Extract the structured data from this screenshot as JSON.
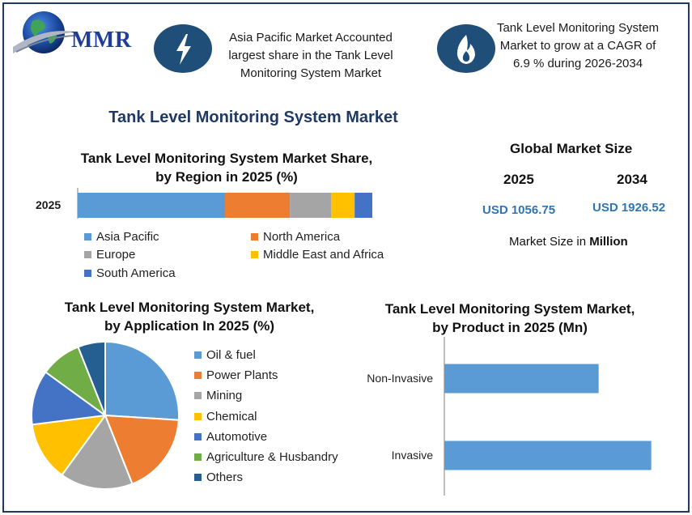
{
  "header": {
    "logo_text": "MMR",
    "highlight_left": "Asia Pacific Market Accounted largest share in the Tank Level Monitoring System Market",
    "highlight_right": "Tank Level Monitoring System Market to grow at a CAGR of 6.9 % during 2026-2034",
    "highlight_left_icon": "lightning-bolt-icon",
    "highlight_right_icon": "flame-icon",
    "icon_color": "#1f4e79"
  },
  "main_title": "Tank Level Monitoring System Market",
  "global_market": {
    "title": "Global Market Size",
    "year_start": "2025",
    "year_end": "2034",
    "value_start": "USD 1056.75",
    "value_end": "USD 1926.52",
    "note_prefix": "Market Size in ",
    "note_bold": "Million"
  },
  "chart_data": [
    {
      "type": "bar",
      "orientation": "horizontal-stacked",
      "title_line1": "Tank Level Monitoring System Market Share,",
      "title_line2": "by Region in 2025 (%)",
      "categories": [
        "2025"
      ],
      "series": [
        {
          "name": "Asia Pacific",
          "values": [
            50
          ],
          "color": "#5b9bd5"
        },
        {
          "name": "North America",
          "values": [
            22
          ],
          "color": "#ed7d31"
        },
        {
          "name": "Europe",
          "values": [
            14
          ],
          "color": "#a5a5a5"
        },
        {
          "name": "Middle East and Africa",
          "values": [
            8
          ],
          "color": "#ffc000"
        },
        {
          "name": "South America",
          "values": [
            6
          ],
          "color": "#4472c4"
        }
      ],
      "xlim": [
        0,
        100
      ],
      "grid": false,
      "legend": "bottom"
    },
    {
      "type": "pie",
      "title_line1": "Tank Level Monitoring System Market,",
      "title_line2": "by Application In 2025 (%)",
      "slices": [
        {
          "name": "Oil & fuel",
          "value": 26,
          "color": "#5b9bd5"
        },
        {
          "name": "Power Plants",
          "value": 18,
          "color": "#ed7d31"
        },
        {
          "name": "Mining",
          "value": 16,
          "color": "#a5a5a5"
        },
        {
          "name": "Chemical",
          "value": 13,
          "color": "#ffc000"
        },
        {
          "name": "Automotive",
          "value": 12,
          "color": "#4472c4"
        },
        {
          "name": "Agriculture & Husbandry",
          "value": 9,
          "color": "#70ad47"
        },
        {
          "name": "Others",
          "value": 6,
          "color": "#255e91"
        }
      ],
      "legend": "right"
    },
    {
      "type": "bar",
      "orientation": "horizontal",
      "title_line1": "Tank Level Monitoring System Market,",
      "title_line2": "by Product in 2025 (Mn)",
      "categories": [
        "Non-Invasive",
        "Invasive"
      ],
      "values": [
        440,
        590
      ],
      "xlim": [
        0,
        600
      ],
      "color": "#5b9bd5",
      "grid": false
    }
  ]
}
